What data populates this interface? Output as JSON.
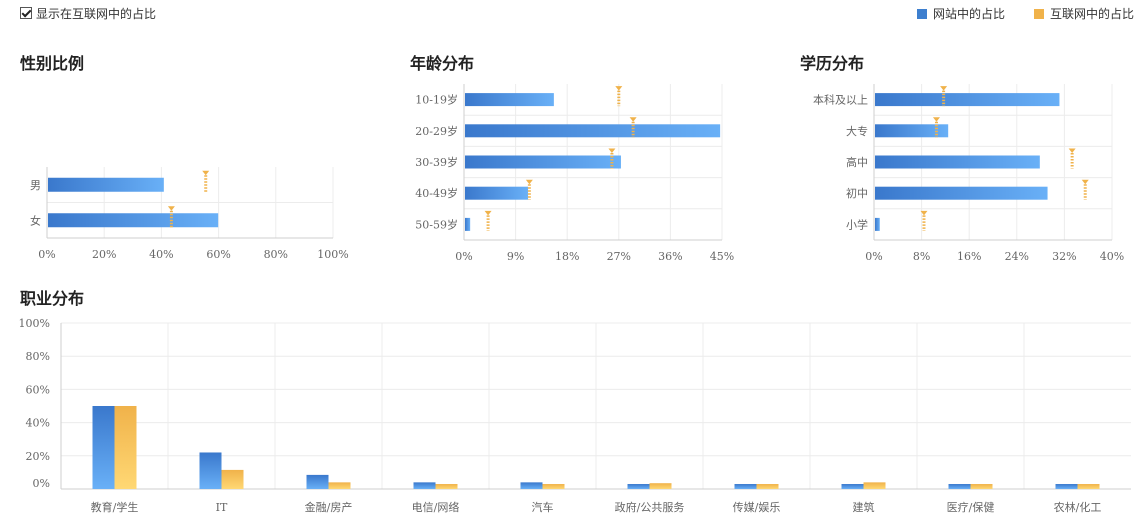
{
  "toggle": {
    "label": "显示在互联网中的占比",
    "checked": true
  },
  "legend": {
    "site": {
      "label": "网站中的占比",
      "color": "#3d7fcf"
    },
    "internet": {
      "label": "互联网中的占比",
      "color": "#f0b24a"
    }
  },
  "chart_data": [
    {
      "type": "bar",
      "orientation": "horizontal",
      "title": "性别比例",
      "categories": [
        "男",
        "女"
      ],
      "series": [
        {
          "name": "网站中的占比",
          "values": [
            40.5,
            59.5
          ]
        },
        {
          "name": "互联网中的占比",
          "values": [
            55.5,
            43.5
          ]
        }
      ],
      "xlim": [
        0,
        100
      ],
      "ticks": [
        "0%",
        "20%",
        "40%",
        "60%",
        "80%",
        "100%"
      ],
      "grid": true
    },
    {
      "type": "bar",
      "orientation": "horizontal",
      "title": "年龄分布",
      "categories": [
        "10-19岁",
        "20-29岁",
        "30-39岁",
        "40-49岁",
        "50-59岁"
      ],
      "series": [
        {
          "name": "网站中的占比",
          "values": [
            15.5,
            44.5,
            27.2,
            11.0,
            0.9
          ]
        },
        {
          "name": "互联网中的占比",
          "values": [
            27.0,
            29.5,
            25.8,
            11.4,
            4.2
          ]
        }
      ],
      "xlim": [
        0,
        45
      ],
      "ticks": [
        "0%",
        "9%",
        "18%",
        "27%",
        "36%",
        "45%"
      ],
      "grid": true
    },
    {
      "type": "bar",
      "orientation": "horizontal",
      "title": "学历分布",
      "categories": [
        "本科及以上",
        "大专",
        "高中",
        "初中",
        "小学"
      ],
      "series": [
        {
          "name": "网站中的占比",
          "values": [
            31.0,
            12.3,
            27.7,
            29.0,
            0.8
          ]
        },
        {
          "name": "互联网中的占比",
          "values": [
            11.7,
            10.5,
            33.3,
            35.5,
            8.4
          ]
        }
      ],
      "xlim": [
        0,
        40
      ],
      "ticks": [
        "0%",
        "8%",
        "16%",
        "24%",
        "32%",
        "40%"
      ],
      "grid": true
    },
    {
      "type": "bar",
      "orientation": "vertical",
      "title": "职业分布",
      "categories": [
        "教育/学生",
        "IT",
        "金融/房产",
        "电信/网络",
        "汽车",
        "政府/公共服务",
        "传媒/娱乐",
        "建筑",
        "医疗/保健",
        "农林/化工"
      ],
      "series": [
        {
          "name": "网站中的占比",
          "values": [
            50.0,
            22.0,
            8.5,
            4.0,
            4.0,
            3.0,
            3.0,
            3.0,
            3.0,
            3.0
          ]
        },
        {
          "name": "互联网中的占比",
          "values": [
            50.0,
            11.5,
            4.0,
            3.0,
            3.0,
            3.5,
            3.0,
            4.0,
            3.0,
            3.0
          ]
        }
      ],
      "ylim": [
        0,
        100
      ],
      "ticks": [
        "0%",
        "20%",
        "40%",
        "60%",
        "80%",
        "100%"
      ],
      "grid": true
    }
  ]
}
